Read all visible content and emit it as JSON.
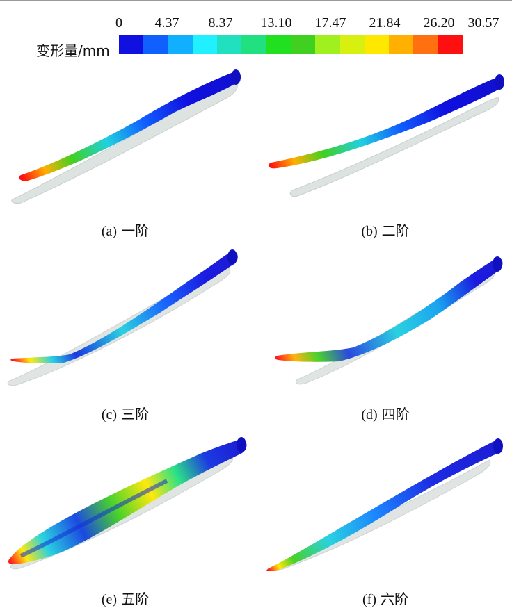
{
  "colorbar": {
    "title": "变形量/mm",
    "ticks": [
      "0",
      "4.37",
      "8.37",
      "13.10",
      "17.47",
      "21.84",
      "26.20",
      "30.57"
    ],
    "colors": [
      "#1010e0",
      "#1060ff",
      "#10b0ff",
      "#20f0ff",
      "#20e0c0",
      "#20e080",
      "#20e020",
      "#40d020",
      "#a0f020",
      "#d8f010",
      "#ffe800",
      "#ffb000",
      "#ff7010",
      "#ff1010"
    ]
  },
  "panels": [
    {
      "label": "(a)",
      "title": "一阶"
    },
    {
      "label": "(b)",
      "title": "二阶"
    },
    {
      "label": "(c)",
      "title": "三阶"
    },
    {
      "label": "(d)",
      "title": "四阶"
    },
    {
      "label": "(e)",
      "title": "五阶"
    },
    {
      "label": "(f)",
      "title": "六阶"
    }
  ]
}
